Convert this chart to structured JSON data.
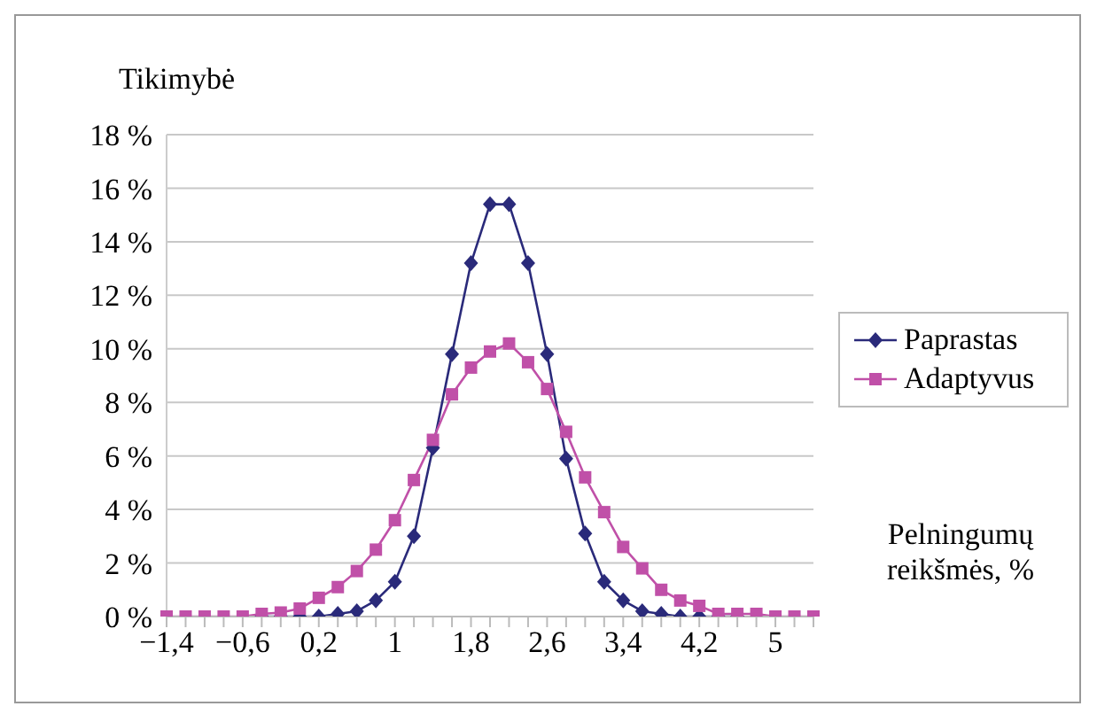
{
  "chart_data": {
    "type": "line",
    "ylabel": "Tikimybė",
    "annotations": [
      "Pelningumų reikšmės, %"
    ],
    "categories": [
      "−1,4",
      null,
      null,
      null,
      "−0,6",
      null,
      null,
      null,
      "0,2",
      null,
      null,
      null,
      "1",
      null,
      null,
      null,
      "1,8",
      null,
      null,
      null,
      "2,6",
      null,
      null,
      null,
      "3,4",
      null,
      null,
      null,
      "4,2",
      null,
      null,
      null,
      "5",
      null,
      null
    ],
    "series": [
      {
        "name": "Paprastas",
        "color": "#2a2a7a",
        "marker": "diamond",
        "values": [
          null,
          null,
          null,
          null,
          null,
          0,
          0,
          0,
          0,
          0.1,
          0.2,
          0.6,
          1.3,
          3.0,
          6.3,
          9.8,
          13.2,
          15.4,
          15.4,
          13.2,
          9.8,
          5.9,
          3.1,
          1.3,
          0.6,
          0.2,
          0.1,
          0,
          0,
          0,
          0,
          null,
          null,
          null,
          null
        ]
      },
      {
        "name": "Adaptyvus",
        "color": "#c050a8",
        "marker": "square",
        "values": [
          0,
          0,
          0,
          0,
          0,
          0.1,
          0.15,
          0.3,
          0.7,
          1.1,
          1.7,
          2.5,
          3.6,
          5.1,
          6.6,
          8.3,
          9.3,
          9.9,
          10.2,
          9.5,
          8.5,
          6.9,
          5.2,
          3.9,
          2.6,
          1.8,
          1.0,
          0.6,
          0.4,
          0.1,
          0.1,
          0.1,
          0,
          0,
          0
        ]
      }
    ],
    "ylim": [
      0,
      18
    ],
    "yticks": [
      {
        "value": 0,
        "label": "0 %"
      },
      {
        "value": 2,
        "label": "2 %"
      },
      {
        "value": 4,
        "label": "4 %"
      },
      {
        "value": 6,
        "label": "6 %"
      },
      {
        "value": 8,
        "label": "8 %"
      },
      {
        "value": 10,
        "label": "10 %"
      },
      {
        "value": 12,
        "label": "12 %"
      },
      {
        "value": 14,
        "label": "14 %"
      },
      {
        "value": 16,
        "label": "16 %"
      },
      {
        "value": 18,
        "label": "18 %"
      }
    ],
    "grid": "y",
    "legend": "right"
  }
}
